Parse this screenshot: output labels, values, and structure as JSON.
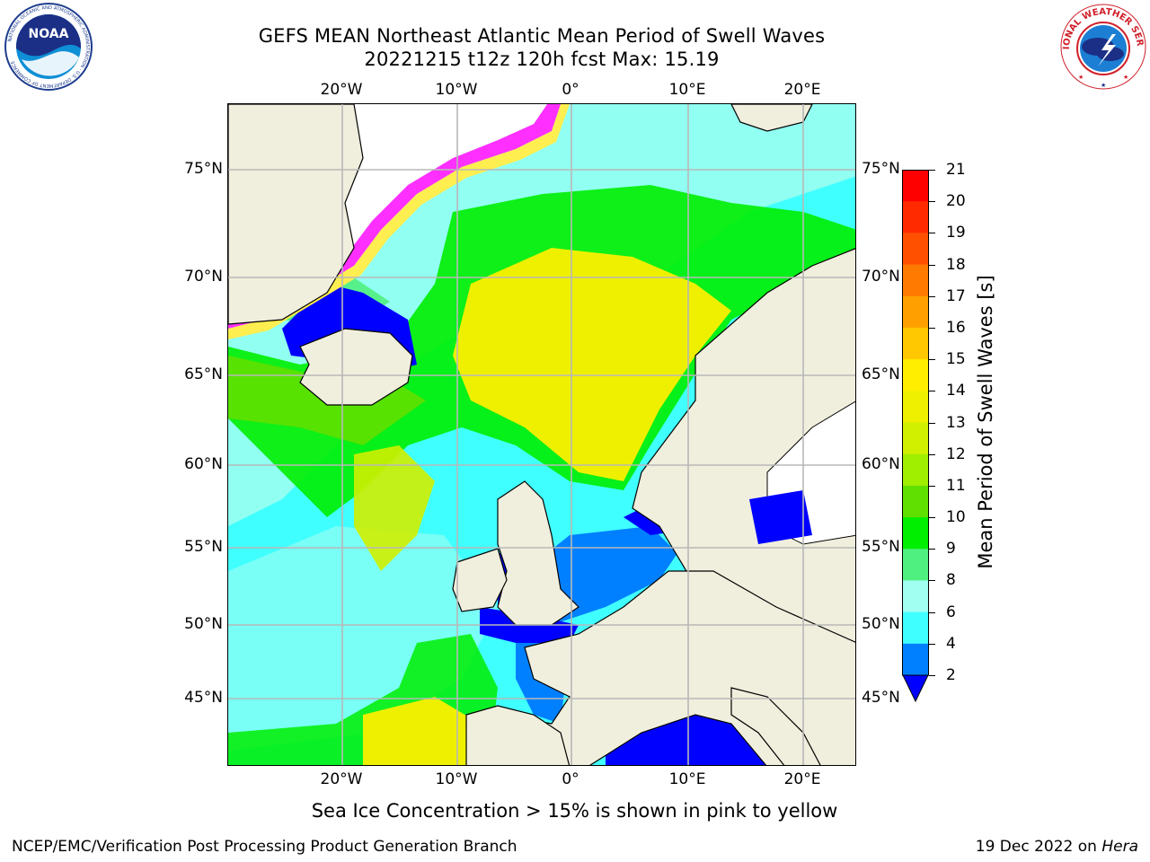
{
  "title": {
    "line1": "GEFS MEAN Northeast Atlantic Mean Period of Swell Waves",
    "line2": "20221215 t12z 120h fcst   Max: 15.19"
  },
  "logos": {
    "left": "NOAA",
    "left_ring_text": "NATIONAL OCEANIC AND ATMOSPHERIC ADMINISTRATION · U.S. DEPARTMENT OF COMMERCE",
    "right_ring_text": "NATIONAL WEATHER SERVICE"
  },
  "map": {
    "lon_ticks_top": [
      "20°W",
      "10°W",
      "0°",
      "10°E",
      "20°E"
    ],
    "lon_ticks_bottom": [
      "20°W",
      "10°W",
      "0°",
      "10°E",
      "20°E"
    ],
    "lat_ticks_left": [
      "75°N",
      "70°N",
      "65°N",
      "60°N",
      "55°N",
      "50°N",
      "45°N"
    ],
    "lat_ticks_right": [
      "75°N",
      "70°N",
      "65°N",
      "60°N",
      "55°N",
      "50°N",
      "45°N"
    ],
    "land_color": "#f0eedd",
    "ice_colors": [
      "#ff30ff",
      "#ff9a30",
      "#ffee50"
    ]
  },
  "colorbar": {
    "title": "Mean Period of Swell Waves [s]",
    "labels": [
      "21",
      "20",
      "19",
      "18",
      "17",
      "16",
      "15",
      "14",
      "13",
      "12",
      "11",
      "10",
      "9",
      "8",
      "6",
      "4",
      "2"
    ],
    "colors": [
      "#ff0000",
      "#ff2a00",
      "#ff5000",
      "#ff7a00",
      "#ffa000",
      "#ffc800",
      "#ffee00",
      "#eef000",
      "#d0f000",
      "#a0ee00",
      "#60e000",
      "#00ee00",
      "#50f080",
      "#a0fff0",
      "#40ffff",
      "#00e8ff",
      "#0080ff"
    ],
    "extend_color": "#0000ff"
  },
  "footnote": "Sea Ice Concentration > 15% is shown in pink to yellow",
  "credit": {
    "left": "NCEP/EMC/Verification Post Processing Product Generation Branch",
    "date": "19 Dec 2022 on ",
    "host": "Hera"
  }
}
